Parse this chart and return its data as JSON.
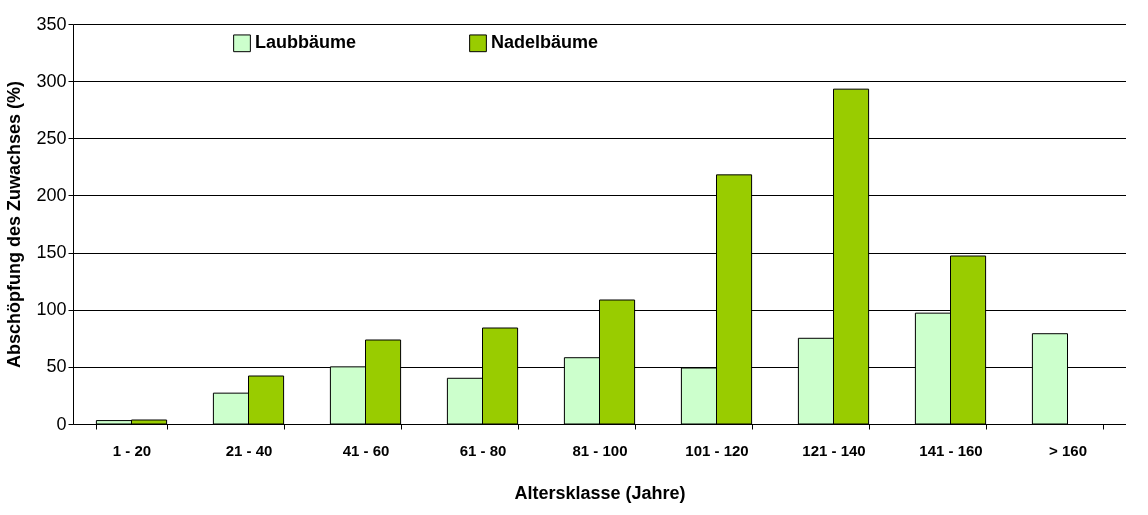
{
  "chart_data": {
    "type": "bar",
    "xlabel": "Altersklasse (Jahre)",
    "ylabel": "Abschöpfung des Zuwachses (%)",
    "categories": [
      "1 - 20",
      "21 - 40",
      "41 - 60",
      "61 - 80",
      "81 - 100",
      "101 - 120",
      "121 - 140",
      "141 - 160",
      "> 160"
    ],
    "series": [
      {
        "name": "Laubbäume",
        "color": "#ccffcc",
        "values": [
          3,
          27,
          50,
          40,
          58,
          49,
          75,
          97,
          79
        ]
      },
      {
        "name": "Nadelbäume",
        "color": "#99cc00",
        "values": [
          3.5,
          42,
          73.5,
          84,
          108.5,
          218,
          293,
          147,
          null
        ]
      }
    ],
    "ylim": [
      0,
      350
    ],
    "yticks": [
      0,
      50,
      100,
      150,
      200,
      250,
      300,
      350
    ],
    "grid": "y",
    "legend": "top left"
  }
}
